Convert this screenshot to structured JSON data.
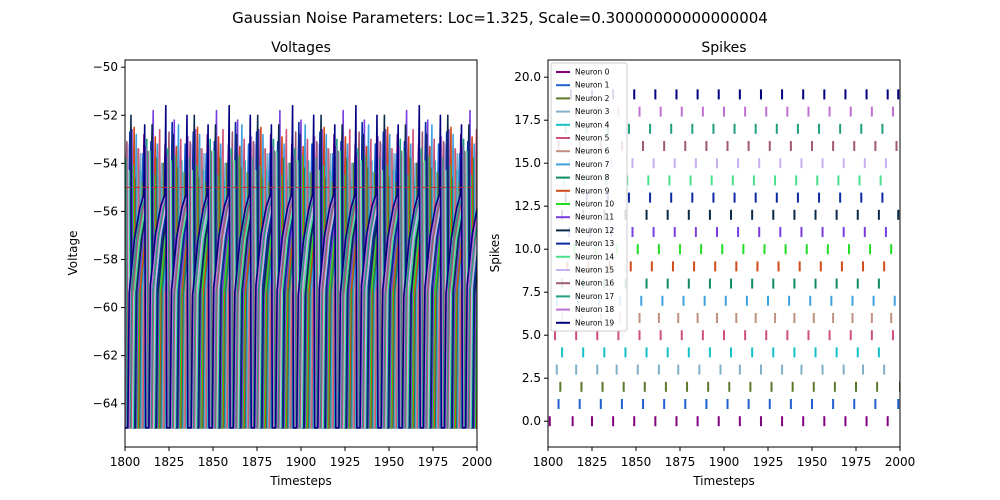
{
  "figure": {
    "suptitle": "Gaussian Noise Parameters: Loc=1.325, Scale=0.30000000000000004"
  },
  "chart_data": [
    {
      "type": "line",
      "title": "Voltages",
      "xlabel": "Timesteps",
      "ylabel": "Voltage",
      "xlim": [
        1800,
        2000
      ],
      "ylim": [
        -65.8,
        -49.7
      ],
      "xticks": [
        1800,
        1825,
        1850,
        1875,
        1900,
        1925,
        1950,
        1975,
        2000
      ],
      "yticks": [
        -64,
        -62,
        -60,
        -58,
        -56,
        -54,
        -52,
        -50
      ],
      "threshold": -55,
      "reset": -65,
      "grid": false,
      "legend": "none",
      "series": [
        {
          "color": "#800080",
          "phase": 0.0,
          "peak": -52.8
        },
        {
          "color": "#1f5fd0",
          "phase": 0.6,
          "peak": -53.2
        },
        {
          "color": "#5a7a2a",
          "phase": 1.2,
          "peak": -54.0
        },
        {
          "color": "#7fb0c8",
          "phase": 1.9,
          "peak": -53.6
        },
        {
          "color": "#17c0c8",
          "phase": 2.5,
          "peak": -53.9
        },
        {
          "color": "#d0507a",
          "phase": 3.1,
          "peak": -52.6
        },
        {
          "color": "#c09080",
          "phase": 3.8,
          "peak": -53.4
        },
        {
          "color": "#3fa0e0",
          "phase": 4.4,
          "peak": -52.4
        },
        {
          "color": "#128a60",
          "phase": 5.0,
          "peak": -53.8
        },
        {
          "color": "#d04a1a",
          "phase": 5.6,
          "peak": -52.5
        },
        {
          "color": "#22dd22",
          "phase": 6.2,
          "peak": -53.7
        },
        {
          "color": "#7a3ddf",
          "phase": 6.8,
          "peak": -51.8
        },
        {
          "color": "#0a2a4a",
          "phase": 7.4,
          "peak": -52.0
        },
        {
          "color": "#0a2aa0",
          "phase": 8.0,
          "peak": -52.3
        },
        {
          "color": "#4ae08a",
          "phase": 8.6,
          "peak": -53.5
        },
        {
          "color": "#c8b0f0",
          "phase": 9.2,
          "peak": -53.2
        },
        {
          "color": "#a05a70",
          "phase": 9.8,
          "peak": -52.7
        },
        {
          "color": "#20a080",
          "phase": 10.4,
          "peak": -53.0
        },
        {
          "color": "#c070d0",
          "phase": 11.0,
          "peak": -52.9
        },
        {
          "color": "#000080",
          "phase": 11.6,
          "peak": -51.6
        }
      ]
    },
    {
      "type": "scatter",
      "marker": "|",
      "title": "Spikes",
      "xlabel": "Timesteps",
      "ylabel": "Spikes",
      "xlim": [
        1800,
        2000
      ],
      "ylim": [
        -1.5,
        21.0
      ],
      "xticks": [
        1800,
        1825,
        1850,
        1875,
        1900,
        1925,
        1950,
        1975,
        2000
      ],
      "yticks": [
        0.0,
        2.5,
        5.0,
        7.5,
        10.0,
        12.5,
        15.0,
        17.5,
        20.0
      ],
      "grid": false,
      "legend": "top-left",
      "series": [
        {
          "name": "Neuron 0",
          "y": 0,
          "color": "#800080",
          "x": [
            1801,
            1814,
            1825,
            1837,
            1849,
            1861,
            1873,
            1885,
            1897,
            1909,
            1921,
            1933,
            1945,
            1957,
            1969,
            1981,
            1993
          ]
        },
        {
          "name": "Neuron 1",
          "y": 1,
          "color": "#1f5fd0",
          "x": [
            1806,
            1818,
            1830,
            1842,
            1854,
            1866,
            1878,
            1890,
            1902,
            1914,
            1926,
            1938,
            1950,
            1962,
            1974,
            1986,
            1999
          ]
        },
        {
          "name": "Neuron 2",
          "y": 2,
          "color": "#5a7a2a",
          "x": [
            1807,
            1819,
            1831,
            1843,
            1855,
            1867,
            1879,
            1891,
            1903,
            1915,
            1927,
            1939,
            1951,
            1963,
            1975,
            1987,
            2000
          ]
        },
        {
          "name": "Neuron 3",
          "y": 3,
          "color": "#7fb0c8",
          "x": [
            1805,
            1816,
            1828,
            1839,
            1851,
            1863,
            1874,
            1886,
            1898,
            1909,
            1921,
            1933,
            1944,
            1956,
            1968,
            1979,
            1991
          ]
        },
        {
          "name": "Neuron 4",
          "y": 4,
          "color": "#17c0c8",
          "x": [
            1808,
            1820,
            1832,
            1844,
            1856,
            1868,
            1880,
            1892,
            1904,
            1916,
            1928,
            1940,
            1952,
            1964,
            1976,
            1988
          ]
        },
        {
          "name": "Neuron 5",
          "y": 5,
          "color": "#d0507a",
          "x": [
            1804,
            1816,
            1828,
            1840,
            1852,
            1864,
            1876,
            1888,
            1900,
            1912,
            1924,
            1936,
            1948,
            1960,
            1972,
            1984,
            1996
          ]
        },
        {
          "name": "Neuron 6",
          "y": 6,
          "color": "#c09080",
          "x": [
            1808,
            1819,
            1830,
            1841,
            1852,
            1863,
            1874,
            1885,
            1896,
            1907,
            1918,
            1929,
            1940,
            1951,
            1962,
            1973,
            1984,
            1995
          ]
        },
        {
          "name": "Neuron 7",
          "y": 7,
          "color": "#3fa0e0",
          "x": [
            1805,
            1817,
            1829,
            1841,
            1853,
            1865,
            1877,
            1889,
            1901,
            1913,
            1925,
            1937,
            1949,
            1961,
            1973,
            1985,
            1997
          ]
        },
        {
          "name": "Neuron 8",
          "y": 8,
          "color": "#128a60",
          "x": [
            1808,
            1820,
            1832,
            1844,
            1856,
            1868,
            1880,
            1892,
            1904,
            1916,
            1928,
            1940,
            1952,
            1964,
            1976,
            1988
          ]
        },
        {
          "name": "Neuron 9",
          "y": 9,
          "color": "#d04a1a",
          "x": [
            1811,
            1823,
            1835,
            1847,
            1859,
            1871,
            1883,
            1895,
            1907,
            1919,
            1931,
            1943,
            1955,
            1967,
            1979,
            1991
          ]
        },
        {
          "name": "Neuron 10",
          "y": 10,
          "color": "#22dd22",
          "x": [
            1815,
            1827,
            1839,
            1851,
            1863,
            1875,
            1887,
            1899,
            1911,
            1923,
            1935,
            1947,
            1959,
            1971,
            1983,
            1995
          ]
        },
        {
          "name": "Neuron 11",
          "y": 11,
          "color": "#7a3ddf",
          "x": [
            1812,
            1824,
            1836,
            1848,
            1860,
            1872,
            1884,
            1896,
            1908,
            1920,
            1932,
            1944,
            1956,
            1968,
            1980,
            1992
          ]
        },
        {
          "name": "Neuron 12",
          "y": 12,
          "color": "#0a2a4a",
          "x": [
            1808,
            1820,
            1832,
            1844,
            1856,
            1868,
            1880,
            1892,
            1904,
            1916,
            1928,
            1940,
            1952,
            1964,
            1976,
            1988,
            1999
          ]
        },
        {
          "name": "Neuron 13",
          "y": 13,
          "color": "#0a2aa0",
          "x": [
            1810,
            1822,
            1834,
            1846,
            1858,
            1870,
            1882,
            1894,
            1906,
            1918,
            1930,
            1942,
            1954,
            1966,
            1978,
            1990
          ]
        },
        {
          "name": "Neuron 14",
          "y": 14,
          "color": "#4ae08a",
          "x": [
            1809,
            1821,
            1833,
            1845,
            1857,
            1869,
            1881,
            1893,
            1905,
            1917,
            1929,
            1941,
            1953,
            1965,
            1977,
            1989
          ]
        },
        {
          "name": "Neuron 15",
          "y": 15,
          "color": "#c8b0f0",
          "x": [
            1812,
            1824,
            1836,
            1848,
            1860,
            1872,
            1884,
            1896,
            1908,
            1920,
            1932,
            1944,
            1956,
            1968,
            1980,
            1992
          ]
        },
        {
          "name": "Neuron 16",
          "y": 16,
          "color": "#a05a70",
          "x": [
            1806,
            1818,
            1830,
            1842,
            1854,
            1866,
            1878,
            1890,
            1902,
            1914,
            1926,
            1938,
            1950,
            1962,
            1974,
            1986,
            1998
          ]
        },
        {
          "name": "Neuron 17",
          "y": 17,
          "color": "#20a080",
          "x": [
            1810,
            1822,
            1834,
            1846,
            1858,
            1870,
            1882,
            1894,
            1906,
            1918,
            1930,
            1942,
            1954,
            1966,
            1978,
            1990
          ]
        },
        {
          "name": "Neuron 18",
          "y": 18,
          "color": "#c070d0",
          "x": [
            1816,
            1828,
            1840,
            1852,
            1864,
            1876,
            1888,
            1900,
            1912,
            1924,
            1936,
            1948,
            1960,
            1972,
            1984,
            1996
          ]
        },
        {
          "name": "Neuron 19",
          "y": 19,
          "color": "#000080",
          "x": [
            1813,
            1825,
            1837,
            1849,
            1861,
            1873,
            1885,
            1897,
            1909,
            1921,
            1933,
            1945,
            1957,
            1969,
            1981,
            1993,
            1999
          ]
        }
      ]
    }
  ]
}
